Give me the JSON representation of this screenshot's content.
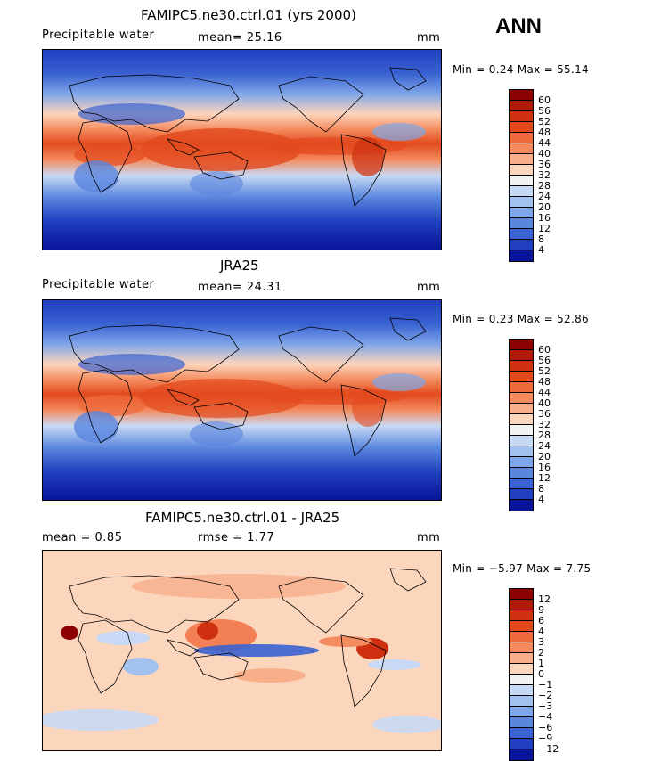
{
  "season": "ANN",
  "units": "mm",
  "panels": [
    {
      "title": "FAMIPC5.ne30.ctrl.01 (yrs 2000)",
      "left_label": "Precipitable water",
      "center_label": "mean=  25.16",
      "units": "mm",
      "min_max": "Min =    0.24 Max =   55.14",
      "kind": "abs"
    },
    {
      "title": "JRA25",
      "left_label": "Precipitable water",
      "center_label": "mean=  24.31",
      "units": "mm",
      "min_max": "Min =    0.23 Max =   52.86",
      "kind": "abs"
    },
    {
      "title": "FAMIPC5.ne30.ctrl.01 - JRA25",
      "left_label": "mean =    0.85",
      "center_label": "rmse =    1.77",
      "units": "mm",
      "min_max": "Min =   −5.97 Max =    7.75",
      "kind": "diff"
    }
  ],
  "colorbars": {
    "abs": {
      "labels": [
        "60",
        "56",
        "52",
        "48",
        "44",
        "40",
        "36",
        "32",
        "28",
        "24",
        "20",
        "16",
        "12",
        "8",
        "4"
      ],
      "colors": [
        "#8b0000",
        "#b01a0a",
        "#cf3010",
        "#e24a1e",
        "#ef6a3a",
        "#f48b5e",
        "#f8ae89",
        "#fcd5bd",
        "#f2f2f2",
        "#c7d9f4",
        "#a3c1ee",
        "#7fa6e8",
        "#5a86de",
        "#3a62d2",
        "#1f3fc0",
        "#08159a"
      ]
    },
    "diff": {
      "labels": [
        "12",
        "9",
        "6",
        "4",
        "3",
        "2",
        "1",
        "0",
        "−1",
        "−2",
        "−3",
        "−4",
        "−6",
        "−9",
        "−12"
      ],
      "colors": [
        "#8b0000",
        "#b01a0a",
        "#cf3010",
        "#e24a1e",
        "#ef6a3a",
        "#f48b5e",
        "#f8ae89",
        "#fcd5bd",
        "#f2f2f2",
        "#c7d9f4",
        "#a3c1ee",
        "#7fa6e8",
        "#5a86de",
        "#3a62d2",
        "#1f3fc0",
        "#08159a"
      ]
    }
  }
}
